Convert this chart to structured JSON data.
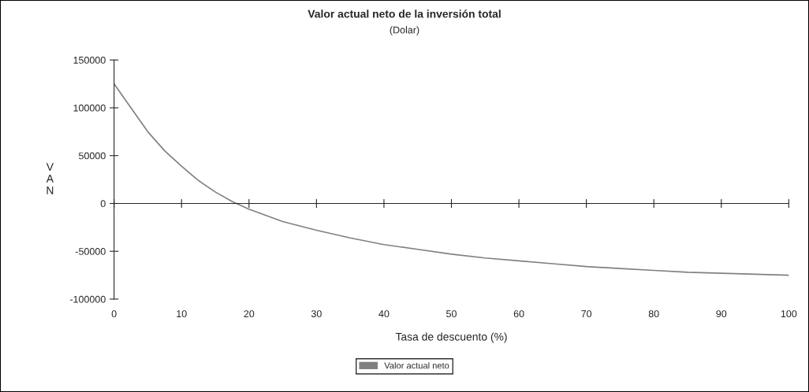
{
  "chart_data": {
    "type": "line",
    "title": "Valor actual neto de la inversión total",
    "subtitle": "(Dolar)",
    "xlabel": "Tasa de descuento (%)",
    "ylabel": "VAN",
    "x": [
      0,
      2.5,
      5,
      7.5,
      10,
      12.5,
      15,
      17.5,
      20,
      25,
      30,
      35,
      40,
      45,
      50,
      55,
      60,
      65,
      70,
      75,
      80,
      85,
      90,
      95,
      100
    ],
    "series": [
      {
        "name": "Valor actual neto",
        "color": "#808080",
        "values": [
          125000,
          100000,
          75000,
          55000,
          39000,
          24000,
          12000,
          2000,
          -6000,
          -19000,
          -28000,
          -36000,
          -43000,
          -48000,
          -53000,
          -57000,
          -60000,
          -63000,
          -66000,
          -68000,
          -70000,
          -72000,
          -73000,
          -74000,
          -75000
        ]
      }
    ],
    "xlim": [
      0,
      100
    ],
    "xticks": [
      0,
      10,
      20,
      30,
      40,
      50,
      60,
      70,
      80,
      90,
      100
    ],
    "ylim": [
      -100000,
      150000
    ],
    "yticks": [
      -100000,
      -50000,
      0,
      50000,
      100000,
      150000
    ],
    "legend": "bottom",
    "line_style": "solid",
    "marker": "none"
  }
}
